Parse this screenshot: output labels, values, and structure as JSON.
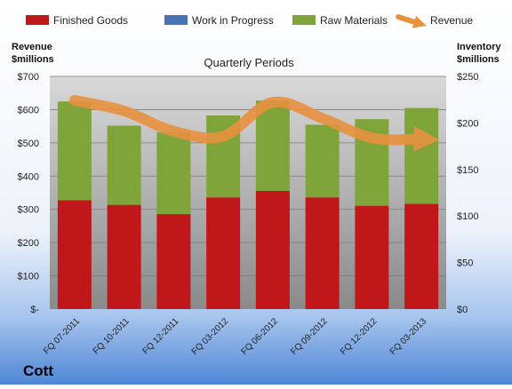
{
  "chart_data": {
    "type": "bar",
    "stacked": true,
    "company": "Cott",
    "plot_title": "Quarterly Periods",
    "left_axis_label_line1": "Revenue",
    "left_axis_label_line2": "$millions",
    "right_axis_label_line1": "Inventory",
    "right_axis_label_line2": "$millions",
    "categories": [
      "FQ 07-2011",
      "FQ 10-2011",
      "FQ 12-2011",
      "FQ 03-2012",
      "FQ 06-2012",
      "FQ 09-2012",
      "FQ 12-2012",
      "FQ 03-2013"
    ],
    "left_ticks": [
      "$-",
      "$100",
      "$200",
      "$300",
      "$400",
      "$500",
      "$600",
      "$700"
    ],
    "right_ticks": [
      "$0",
      "$50",
      "$100",
      "$150",
      "$200",
      "$250"
    ],
    "ylim_left": [
      0,
      700
    ],
    "ylim_right": [
      0,
      250
    ],
    "series": [
      {
        "name": "Finished Goods",
        "axis": "right",
        "color": "#c0171a",
        "values": [
          117,
          112,
          102,
          120,
          127,
          120,
          111,
          113
        ]
      },
      {
        "name": "Work in Progress",
        "axis": "right",
        "color": "#4a73b5",
        "values": [
          0,
          0,
          0,
          0,
          0,
          0,
          0,
          0
        ]
      },
      {
        "name": "Raw Materials",
        "axis": "right",
        "color": "#7ea43a",
        "values": [
          106,
          85,
          88,
          88,
          97,
          78,
          93,
          103
        ]
      }
    ],
    "line_series": {
      "name": "Revenue",
      "axis": "left",
      "color": "#e8913f",
      "values": [
        628,
        596,
        535,
        520,
        622,
        574,
        515,
        511
      ]
    },
    "legend_position": "top"
  }
}
